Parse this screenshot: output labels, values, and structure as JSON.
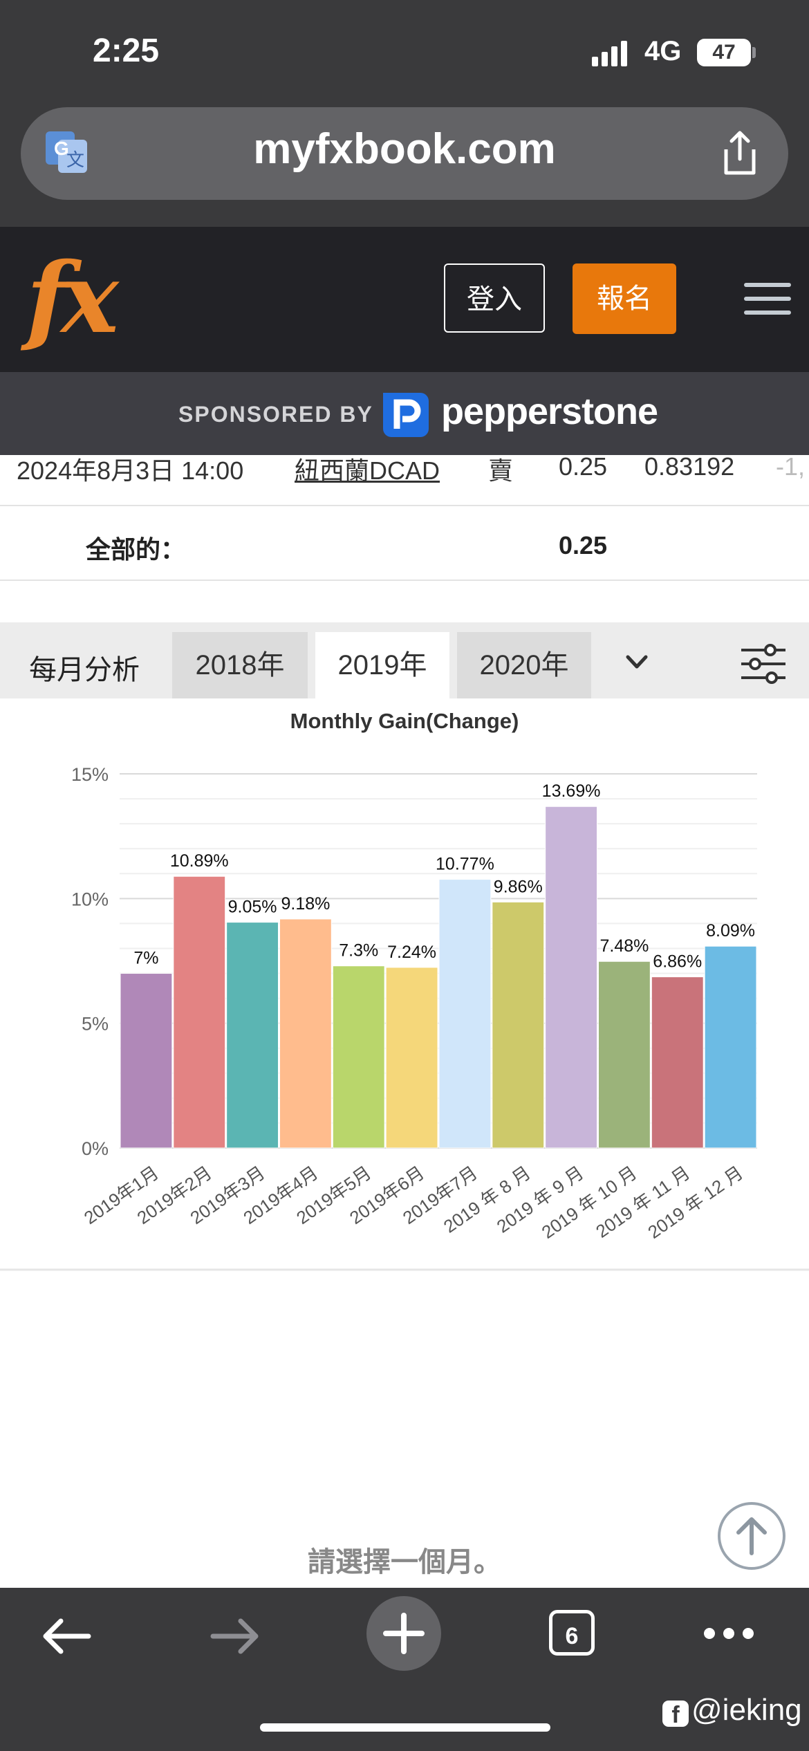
{
  "status_bar": {
    "time": "2:25",
    "network": "4G",
    "battery": "47"
  },
  "browser": {
    "url": "myfxbook.com",
    "tabs_count": "6"
  },
  "site_header": {
    "logo": "fx",
    "login_label": "登入",
    "signup_label": "報名"
  },
  "sponsor": {
    "label": "SPONSORED BY",
    "name": "pepperstone"
  },
  "trade_row": {
    "date": "2024年8月3日 14:00",
    "symbol": "紐西蘭DCAD",
    "action": "賣",
    "lots": "0.25",
    "price": "0.83192",
    "profit": "-1,"
  },
  "total_row": {
    "label": "全部的：",
    "value": "0.25"
  },
  "monthly_tabs": {
    "title": "每月分析",
    "tabs": [
      "2018年",
      "2019年",
      "2020年"
    ],
    "active": "2019年"
  },
  "chart_data": {
    "type": "bar",
    "title": "Monthly Gain(Change)",
    "categories": [
      "2019年1月",
      "2019年2月",
      "2019年3月",
      "2019年4月",
      "2019年5月",
      "2019年6月",
      "2019年7月",
      "2019 年 8 月",
      "2019 年 9 月",
      "2019 年 10 月",
      "2019 年 11 月",
      "2019 年 12 月"
    ],
    "values": [
      7,
      10.89,
      9.05,
      9.18,
      7.3,
      7.24,
      10.77,
      9.86,
      13.69,
      7.48,
      6.86,
      8.09
    ],
    "labels": [
      "7%",
      "10.89%",
      "9.05%",
      "9.18%",
      "7.3%",
      "7.24%",
      "10.77%",
      "9.86%",
      "13.69%",
      "7.48%",
      "6.86%",
      "8.09%"
    ],
    "colors": [
      "#b088b8",
      "#e38383",
      "#5bb5b3",
      "#ffbc8d",
      "#b9d66b",
      "#f5d77a",
      "#d0e6fa",
      "#cdc96a",
      "#c8b5d9",
      "#9bb37a",
      "#c9737a",
      "#6cbbe4"
    ],
    "yticks": [
      "0%",
      "5%",
      "10%",
      "15%"
    ],
    "ylim": [
      0,
      15
    ],
    "grid": true
  },
  "bottom": {
    "select_month": "請選擇一個月。",
    "watermark": "@ieking"
  }
}
